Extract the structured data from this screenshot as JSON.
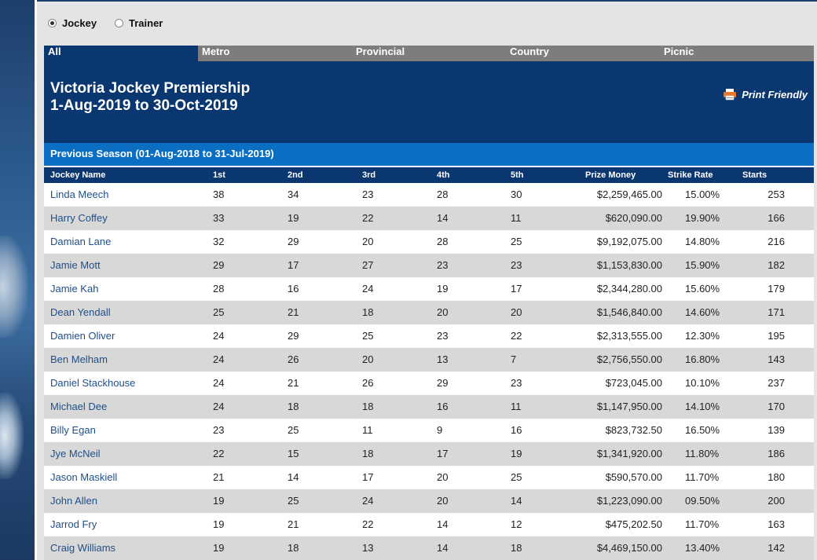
{
  "filters": {
    "jockey_label": "Jockey",
    "trainer_label": "Trainer",
    "selected": "jockey"
  },
  "tabs": [
    "All",
    "Metro",
    "Provincial",
    "Country",
    "Picnic"
  ],
  "active_tab": "All",
  "header": {
    "title": "Victoria Jockey Premiership",
    "date_range": "1-Aug-2019 to 30-Oct-2019",
    "print_label": "Print Friendly"
  },
  "previous_season": "Previous Season (01-Aug-2018 to 31-Jul-2019)",
  "table": {
    "columns": [
      "Jockey Name",
      "1st",
      "2nd",
      "3rd",
      "4th",
      "5th",
      "Prize Money",
      "Strike Rate",
      "Starts"
    ],
    "rows": [
      [
        "Linda Meech",
        "38",
        "34",
        "23",
        "28",
        "30",
        "$2,259,465.00",
        "15.00%",
        "253"
      ],
      [
        "Harry Coffey",
        "33",
        "19",
        "22",
        "14",
        "11",
        "$620,090.00",
        "19.90%",
        "166"
      ],
      [
        "Damian Lane",
        "32",
        "29",
        "20",
        "28",
        "25",
        "$9,192,075.00",
        "14.80%",
        "216"
      ],
      [
        "Jamie Mott",
        "29",
        "17",
        "27",
        "23",
        "23",
        "$1,153,830.00",
        "15.90%",
        "182"
      ],
      [
        "Jamie Kah",
        "28",
        "16",
        "24",
        "19",
        "17",
        "$2,344,280.00",
        "15.60%",
        "179"
      ],
      [
        "Dean Yendall",
        "25",
        "21",
        "18",
        "20",
        "20",
        "$1,546,840.00",
        "14.60%",
        "171"
      ],
      [
        "Damien Oliver",
        "24",
        "29",
        "25",
        "23",
        "22",
        "$2,313,555.00",
        "12.30%",
        "195"
      ],
      [
        "Ben Melham",
        "24",
        "26",
        "20",
        "13",
        "7",
        "$2,756,550.00",
        "16.80%",
        "143"
      ],
      [
        "Daniel Stackhouse",
        "24",
        "21",
        "26",
        "29",
        "23",
        "$723,045.00",
        "10.10%",
        "237"
      ],
      [
        "Michael Dee",
        "24",
        "18",
        "18",
        "16",
        "11",
        "$1,147,950.00",
        "14.10%",
        "170"
      ],
      [
        "Billy Egan",
        "23",
        "25",
        "11",
        "9",
        "16",
        "$823,732.50",
        "16.50%",
        "139"
      ],
      [
        "Jye McNeil",
        "22",
        "15",
        "18",
        "17",
        "19",
        "$1,341,920.00",
        "11.80%",
        "186"
      ],
      [
        "Jason Maskiell",
        "21",
        "14",
        "17",
        "20",
        "25",
        "$590,570.00",
        "11.70%",
        "180"
      ],
      [
        "John Allen",
        "19",
        "25",
        "24",
        "20",
        "14",
        "$1,223,090.00",
        "09.50%",
        "200"
      ],
      [
        "Jarrod Fry",
        "19",
        "21",
        "22",
        "14",
        "12",
        "$475,202.50",
        "11.70%",
        "163"
      ],
      [
        "Craig Williams",
        "19",
        "18",
        "13",
        "14",
        "18",
        "$4,469,150.00",
        "13.40%",
        "142"
      ]
    ]
  },
  "colors": {
    "navy": "#0b3771",
    "blue_bar": "#0a6fc2",
    "tab_grey": "#7d7d7d",
    "row_alt": "#d8d8d8",
    "link": "#1f4f88"
  }
}
